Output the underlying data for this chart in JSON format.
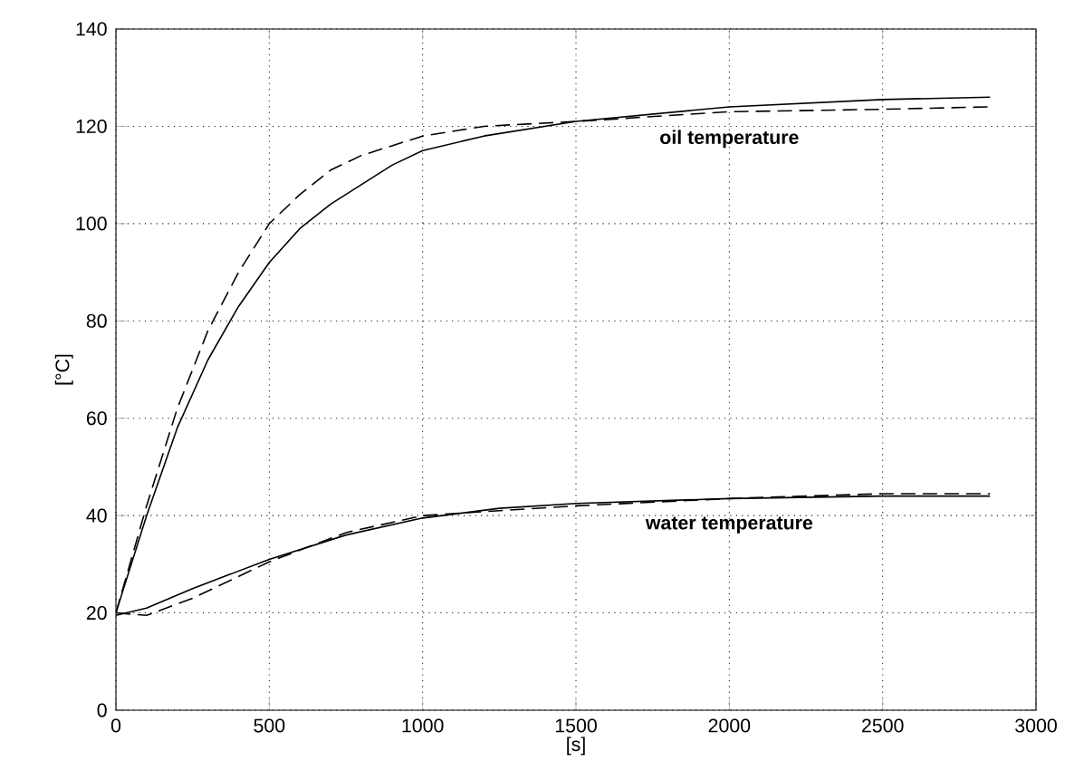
{
  "chart_data": {
    "type": "line",
    "xlabel": "[s]",
    "ylabel": "[°C]",
    "xlim": [
      0,
      3000
    ],
    "xticks": [
      0,
      500,
      1000,
      1500,
      2000,
      2500,
      3000
    ],
    "ylim": [
      0,
      140
    ],
    "yticks": [
      0,
      20,
      40,
      60,
      80,
      100,
      120,
      140
    ],
    "grid": true,
    "series": [
      {
        "color": "#000000",
        "line_style": "solid",
        "x": [
          0,
          100,
          200,
          300,
          400,
          500,
          600,
          700,
          800,
          900,
          1000,
          1200,
          1500,
          2000,
          2500,
          2850
        ],
        "values": [
          20,
          40,
          58,
          72,
          83,
          92,
          99,
          104,
          108,
          112,
          115,
          118,
          121,
          124,
          125.5,
          126
        ]
      },
      {
        "color": "#000000",
        "line_style": "dashed",
        "x": [
          0,
          100,
          200,
          300,
          400,
          500,
          600,
          700,
          800,
          900,
          1000,
          1200,
          1500,
          2000,
          2500,
          2850
        ],
        "values": [
          20,
          42,
          62,
          78,
          90,
          100,
          106,
          111,
          114,
          116,
          118,
          120,
          121,
          123,
          123.5,
          124
        ]
      },
      {
        "color": "#000000",
        "line_style": "solid",
        "x": [
          0,
          100,
          250,
          500,
          750,
          1000,
          1250,
          1500,
          2000,
          2500,
          2850
        ],
        "values": [
          19.5,
          21,
          25,
          31,
          36,
          39.5,
          41.5,
          42.5,
          43.5,
          44,
          44
        ]
      },
      {
        "color": "#000000",
        "line_style": "dashed",
        "x": [
          0,
          100,
          250,
          500,
          750,
          1000,
          1500,
          2000,
          2500,
          2850
        ],
        "values": [
          20,
          19.5,
          23,
          30.5,
          36.5,
          40,
          42,
          43.5,
          44.5,
          44.5
        ]
      }
    ],
    "annotations": [
      {
        "text": "oil temperature",
        "x": 2000,
        "y": 123
      },
      {
        "text": "water temperature",
        "x": 2000,
        "y": 43.5
      }
    ]
  }
}
